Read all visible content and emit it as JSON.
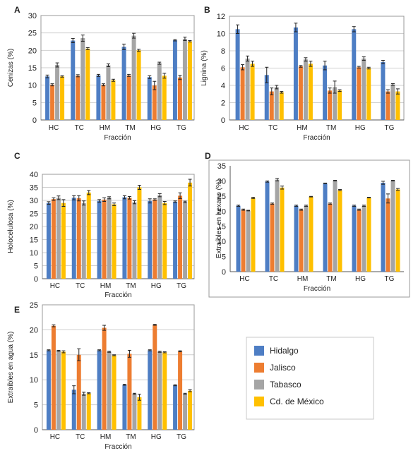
{
  "colors": {
    "Hidalgo": "#4e7ec4",
    "Jalisco": "#ed7d31",
    "Tabasco": "#a5a5a5",
    "Cd. de México": "#ffc000"
  },
  "legend": [
    "Hidalgo",
    "Jalisco",
    "Tabasco",
    "Cd. de México"
  ],
  "chart_data": [
    {
      "panel": "A",
      "type": "bar",
      "categories": [
        "HC",
        "TC",
        "HM",
        "TM",
        "HG",
        "TG"
      ],
      "xlabel": "Fracción",
      "ylabel": "Cenizas (%)",
      "ylim": [
        0,
        30
      ],
      "yticks": [
        0,
        5,
        10,
        15,
        20,
        25,
        30
      ],
      "grid": true,
      "series": [
        {
          "name": "Hidalgo",
          "values": [
            12.5,
            22.8,
            12.8,
            21.0,
            12.3,
            22.9
          ],
          "errors": [
            0.4,
            0.6,
            0.3,
            0.8,
            0.4,
            0.2
          ]
        },
        {
          "name": "Jalisco",
          "values": [
            10.1,
            12.7,
            10.1,
            12.8,
            9.9,
            12.2
          ],
          "errors": [
            0.3,
            0.3,
            0.3,
            0.3,
            1.2,
            0.6
          ]
        },
        {
          "name": "Tabasco",
          "values": [
            15.8,
            23.5,
            15.7,
            24.2,
            16.3,
            23.3
          ],
          "errors": [
            0.6,
            0.9,
            0.4,
            0.7,
            0.3,
            0.5
          ]
        },
        {
          "name": "Cd. de México",
          "values": [
            12.5,
            20.5,
            11.4,
            20.0,
            12.7,
            22.6
          ],
          "errors": [
            0.2,
            0.3,
            0.3,
            0.3,
            0.7,
            0.2
          ]
        }
      ]
    },
    {
      "panel": "B",
      "type": "bar",
      "categories": [
        "HC",
        "TC",
        "HM",
        "TM",
        "HG",
        "TG"
      ],
      "xlabel": "Fracción",
      "ylabel": "Lignina (%)",
      "ylim": [
        0,
        12
      ],
      "yticks": [
        0,
        2,
        4,
        6,
        8,
        10,
        12
      ],
      "grid": true,
      "series": [
        {
          "name": "Hidalgo",
          "values": [
            10.5,
            5.2,
            10.7,
            6.3,
            10.5,
            6.7
          ],
          "errors": [
            0.5,
            0.9,
            0.5,
            0.5,
            0.3,
            0.2
          ]
        },
        {
          "name": "Jalisco",
          "values": [
            6.1,
            3.3,
            6.2,
            3.4,
            6.1,
            3.3
          ],
          "errors": [
            0.3,
            0.4,
            0.1,
            0.3,
            0.1,
            0.2
          ]
        },
        {
          "name": "Tabasco",
          "values": [
            7.1,
            3.8,
            7.0,
            3.8,
            7.1,
            4.1
          ],
          "errors": [
            0.3,
            0.2,
            0.2,
            0.7,
            0.2,
            0.1
          ]
        },
        {
          "name": "Cd. de México",
          "values": [
            6.5,
            3.2,
            6.5,
            3.4,
            6.0,
            3.3
          ],
          "errors": [
            0.3,
            0.1,
            0.3,
            0.1,
            0.1,
            0.3
          ]
        }
      ]
    },
    {
      "panel": "C",
      "type": "bar",
      "categories": [
        "HC",
        "TC",
        "HM",
        "TM",
        "HG",
        "TG"
      ],
      "xlabel": "Fracción",
      "ylabel": "Holocelulosa (%)",
      "ylim": [
        0,
        40
      ],
      "yticks": [
        0,
        5,
        10,
        15,
        20,
        25,
        30,
        35,
        40
      ],
      "grid": true,
      "series": [
        {
          "name": "Hidalgo",
          "values": [
            29.0,
            31.0,
            29.8,
            31.2,
            29.8,
            29.5
          ],
          "errors": [
            0.5,
            0.8,
            0.5,
            0.6,
            0.8,
            0.3
          ]
        },
        {
          "name": "Jalisco",
          "values": [
            30.5,
            30.8,
            30.3,
            31.0,
            30.3,
            31.8
          ],
          "errors": [
            0.5,
            1.0,
            0.7,
            0.5,
            0.3,
            1.1
          ]
        },
        {
          "name": "Tabasco",
          "values": [
            31.0,
            29.0,
            31.0,
            29.3,
            32.0,
            29.4
          ],
          "errors": [
            0.7,
            0.8,
            0.4,
            0.6,
            0.6,
            0.3
          ]
        },
        {
          "name": "Cd. de México",
          "values": [
            29.0,
            33.0,
            28.5,
            35.0,
            29.0,
            36.8
          ],
          "errors": [
            1.3,
            0.8,
            0.5,
            0.8,
            0.6,
            1.3
          ]
        }
      ]
    },
    {
      "panel": "D",
      "type": "bar",
      "categories": [
        "HC",
        "TC",
        "HM",
        "TM",
        "HG",
        "TG"
      ],
      "xlabel": "Fracción",
      "ylabel": "Extraíbles en hexano (%)",
      "ylim": [
        0,
        35
      ],
      "yticks": [
        0,
        5,
        10,
        15,
        20,
        25,
        30,
        35
      ],
      "grid": false,
      "series": [
        {
          "name": "Hidalgo",
          "values": [
            21.8,
            29.8,
            21.8,
            29.2,
            21.8,
            29.4
          ],
          "errors": [
            0.2,
            0.2,
            0.2,
            0.1,
            0.2,
            0.5
          ]
        },
        {
          "name": "Jalisco",
          "values": [
            20.5,
            22.5,
            20.5,
            22.5,
            20.5,
            24.2
          ],
          "errors": [
            0.2,
            0.2,
            0.2,
            0.2,
            0.2,
            1.5
          ]
        },
        {
          "name": "Tabasco",
          "values": [
            20.2,
            30.4,
            21.8,
            30.1,
            21.8,
            30.1
          ],
          "errors": [
            0.1,
            0.4,
            0.2,
            0.1,
            0.2,
            0.1
          ]
        },
        {
          "name": "Cd. de México",
          "values": [
            24.4,
            27.8,
            24.8,
            27.0,
            24.5,
            27.2
          ],
          "errors": [
            0.2,
            0.5,
            0.1,
            0.2,
            0.1,
            0.3
          ]
        }
      ]
    },
    {
      "panel": "E",
      "type": "bar",
      "categories": [
        "HC",
        "TC",
        "HM",
        "TM",
        "HG",
        "TG"
      ],
      "xlabel": "Fracción",
      "ylabel": "Extraíbles en agua (%)",
      "ylim": [
        0,
        25
      ],
      "yticks": [
        0,
        5,
        10,
        15,
        20,
        25
      ],
      "grid": true,
      "series": [
        {
          "name": "Hidalgo",
          "values": [
            15.9,
            8.0,
            15.9,
            9.0,
            15.9,
            8.9
          ],
          "errors": [
            0.1,
            0.8,
            0.1,
            0.1,
            0.1,
            0.1
          ]
        },
        {
          "name": "Jalisco",
          "values": [
            20.8,
            15.0,
            20.4,
            15.2,
            21.0,
            15.7
          ],
          "errors": [
            0.2,
            1.2,
            0.5,
            0.7,
            0.1,
            0.1
          ]
        },
        {
          "name": "Tabasco",
          "values": [
            15.8,
            7.2,
            15.6,
            7.2,
            15.6,
            7.2
          ],
          "errors": [
            0.1,
            0.3,
            0.1,
            0.1,
            0.1,
            0.1
          ]
        },
        {
          "name": "Cd. de México",
          "values": [
            15.6,
            7.3,
            14.9,
            6.5,
            15.5,
            7.8
          ],
          "errors": [
            0.2,
            0.1,
            0.1,
            0.6,
            0.1,
            0.2
          ]
        }
      ]
    }
  ]
}
